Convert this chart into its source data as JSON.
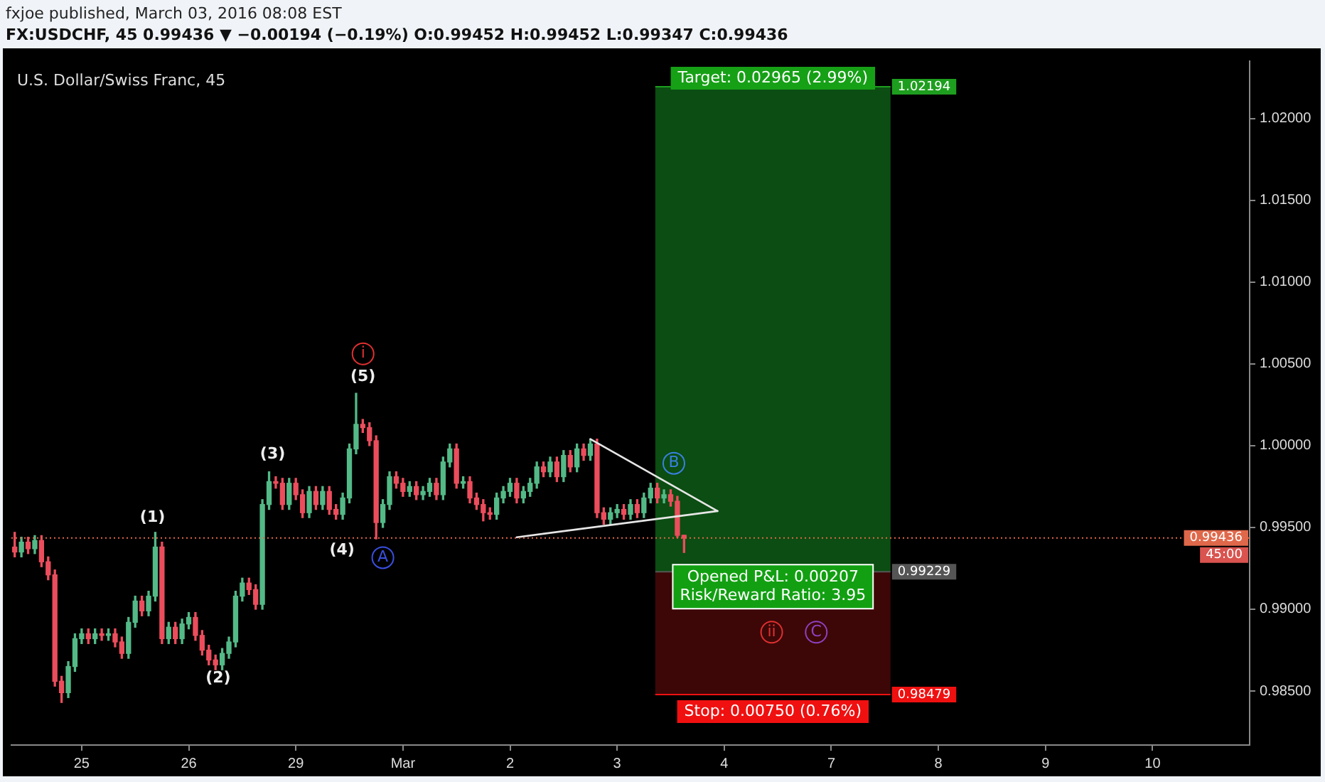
{
  "chart_data": {
    "type": "candlestick",
    "title": "fxjoe published, March 03, 2016 08:08 EST",
    "subtitle": "FX:USDCHF, 45 0.99436 ▼ −0.00194 (−0.19%) O:0.99452 H:0.99452 L:0.99347 C:0.99436",
    "categories": [
      null,
      null,
      null,
      null,
      null,
      null,
      null,
      null,
      null,
      null,
      "25",
      null,
      null,
      null,
      null,
      null,
      null,
      null,
      null,
      null,
      null,
      null,
      null,
      null,
      null,
      null,
      "26",
      null,
      null,
      null,
      null,
      null,
      null,
      null,
      null,
      null,
      null,
      null,
      null,
      null,
      null,
      null,
      "29",
      null,
      null,
      null,
      null,
      null,
      null,
      null,
      null,
      null,
      null,
      null,
      null,
      null,
      null,
      null,
      "Mar",
      null,
      null,
      null,
      null,
      null,
      null,
      null,
      null,
      null,
      null,
      null,
      null,
      null,
      null,
      null,
      "2",
      null,
      null,
      null,
      null,
      null,
      null,
      null,
      null,
      null,
      null,
      null,
      null,
      null,
      null,
      null,
      "3",
      null,
      null,
      null,
      null,
      null,
      null,
      null,
      null,
      null,
      null,
      null,
      null,
      null,
      null,
      null,
      "4",
      null,
      null,
      null,
      null,
      null,
      null,
      null,
      null,
      null,
      null,
      null,
      null,
      null,
      null,
      null,
      "7",
      null,
      null,
      null,
      null,
      null,
      null,
      null,
      null,
      null,
      null,
      null,
      null,
      null,
      null,
      null,
      "8",
      null,
      null,
      null,
      null,
      null,
      null,
      null,
      null,
      null,
      null,
      null,
      null,
      null,
      null,
      null,
      "9",
      null,
      null,
      null,
      null,
      null,
      null,
      null,
      null,
      null,
      null,
      null,
      null,
      null,
      null,
      null,
      "10",
      null,
      null,
      null,
      null,
      null,
      null,
      null,
      null,
      null,
      null,
      null,
      null,
      null,
      null
    ],
    "ohlc": [
      [
        0.9938,
        0.9947,
        0.9932,
        0.9935
      ],
      [
        0.9935,
        0.9944,
        0.9932,
        0.9941
      ],
      [
        0.9941,
        0.9944,
        0.9934,
        0.9937
      ],
      [
        0.9937,
        0.9945,
        0.9934,
        0.9942
      ],
      [
        0.9942,
        0.9945,
        0.9926,
        0.9929
      ],
      [
        0.9929,
        0.9932,
        0.9918,
        0.9921
      ],
      [
        0.9921,
        0.9924,
        0.9853,
        0.9856
      ],
      [
        0.9856,
        0.9859,
        0.9843,
        0.9849
      ],
      [
        0.9849,
        0.9868,
        0.9846,
        0.9865
      ],
      [
        0.9865,
        0.9885,
        0.9862,
        0.9882
      ],
      [
        0.9882,
        0.9888,
        0.9879,
        0.9885
      ],
      [
        0.9885,
        0.9888,
        0.9879,
        0.9882
      ],
      [
        0.9882,
        0.9888,
        0.9879,
        0.9885
      ],
      [
        0.9885,
        0.9888,
        0.9881,
        0.9884
      ],
      [
        0.9884,
        0.9888,
        0.9881,
        0.9885
      ],
      [
        0.9885,
        0.9888,
        0.9877,
        0.988
      ],
      [
        0.988,
        0.9883,
        0.987,
        0.9873
      ],
      [
        0.9873,
        0.9895,
        0.987,
        0.9892
      ],
      [
        0.9892,
        0.9908,
        0.9889,
        0.9905
      ],
      [
        0.9905,
        0.9908,
        0.9896,
        0.9899
      ],
      [
        0.9899,
        0.9911,
        0.9896,
        0.9908
      ],
      [
        0.9908,
        0.9947,
        0.9905,
        0.9938
      ],
      [
        0.9938,
        0.9941,
        0.9879,
        0.9882
      ],
      [
        0.9882,
        0.9892,
        0.9879,
        0.9889
      ],
      [
        0.9889,
        0.9892,
        0.9879,
        0.9882
      ],
      [
        0.9882,
        0.9894,
        0.9879,
        0.9891
      ],
      [
        0.9891,
        0.9898,
        0.9888,
        0.9895
      ],
      [
        0.9895,
        0.9898,
        0.9881,
        0.9884
      ],
      [
        0.9884,
        0.9887,
        0.9872,
        0.9875
      ],
      [
        0.9875,
        0.9878,
        0.9866,
        0.9869
      ],
      [
        0.9869,
        0.9872,
        0.9863,
        0.9866
      ],
      [
        0.9866,
        0.9876,
        0.9863,
        0.9873
      ],
      [
        0.9873,
        0.9883,
        0.987,
        0.988
      ],
      [
        0.988,
        0.9911,
        0.9877,
        0.9908
      ],
      [
        0.9908,
        0.9919,
        0.9905,
        0.9916
      ],
      [
        0.9916,
        0.9919,
        0.9909,
        0.9912
      ],
      [
        0.9912,
        0.9915,
        0.99,
        0.9903
      ],
      [
        0.9903,
        0.9967,
        0.99,
        0.9964
      ],
      [
        0.9964,
        0.9984,
        0.9961,
        0.9978
      ],
      [
        0.9978,
        0.9981,
        0.9974,
        0.9977
      ],
      [
        0.9977,
        0.998,
        0.9961,
        0.9964
      ],
      [
        0.9964,
        0.998,
        0.9961,
        0.9977
      ],
      [
        0.9977,
        0.998,
        0.9967,
        0.997
      ],
      [
        0.997,
        0.9973,
        0.9956,
        0.9959
      ],
      [
        0.9959,
        0.9975,
        0.9956,
        0.9972
      ],
      [
        0.9972,
        0.9975,
        0.9961,
        0.9964
      ],
      [
        0.9964,
        0.9975,
        0.9961,
        0.9972
      ],
      [
        0.9972,
        0.9975,
        0.9958,
        0.9961
      ],
      [
        0.9961,
        0.9964,
        0.9955,
        0.9958
      ],
      [
        0.9958,
        0.9971,
        0.9955,
        0.9968
      ],
      [
        0.9968,
        1.0001,
        0.9965,
        0.9998
      ],
      [
        0.9998,
        1.0032,
        0.9995,
        1.0013
      ],
      [
        1.0013,
        1.0016,
        1.0008,
        1.0011
      ],
      [
        1.0011,
        1.0014,
        1.0,
        1.0003
      ],
      [
        1.0003,
        1.0006,
        0.9943,
        0.9953
      ],
      [
        0.9953,
        0.9967,
        0.995,
        0.9964
      ],
      [
        0.9964,
        0.9984,
        0.9961,
        0.9981
      ],
      [
        0.9981,
        0.9984,
        0.9974,
        0.9977
      ],
      [
        0.9977,
        0.998,
        0.9969,
        0.9972
      ],
      [
        0.9972,
        0.9978,
        0.9969,
        0.9975
      ],
      [
        0.9975,
        0.9978,
        0.9967,
        0.997
      ],
      [
        0.997,
        0.9975,
        0.9967,
        0.9972
      ],
      [
        0.9972,
        0.998,
        0.9969,
        0.9977
      ],
      [
        0.9977,
        0.998,
        0.9967,
        0.997
      ],
      [
        0.997,
        0.9993,
        0.9967,
        0.999
      ],
      [
        0.999,
        1.0001,
        0.9987,
        0.9998
      ],
      [
        0.9998,
        1.0001,
        0.9974,
        0.9977
      ],
      [
        0.9977,
        0.9981,
        0.9974,
        0.9978
      ],
      [
        0.9978,
        0.9981,
        0.9965,
        0.9968
      ],
      [
        0.9968,
        0.9971,
        0.9961,
        0.9964
      ],
      [
        0.9964,
        0.9967,
        0.9954,
        0.9959
      ],
      [
        0.9959,
        0.9962,
        0.9955,
        0.9958
      ],
      [
        0.9958,
        0.9971,
        0.9955,
        0.9968
      ],
      [
        0.9968,
        0.9975,
        0.9965,
        0.9972
      ],
      [
        0.9972,
        0.998,
        0.9969,
        0.9977
      ],
      [
        0.9977,
        0.998,
        0.9965,
        0.9968
      ],
      [
        0.9968,
        0.9975,
        0.9965,
        0.9972
      ],
      [
        0.9972,
        0.998,
        0.9969,
        0.9977
      ],
      [
        0.9977,
        0.999,
        0.9974,
        0.9987
      ],
      [
        0.9987,
        0.999,
        0.9981,
        0.9984
      ],
      [
        0.9984,
        0.9993,
        0.9981,
        0.999
      ],
      [
        0.999,
        0.9993,
        0.9978,
        0.9981
      ],
      [
        0.9981,
        0.9997,
        0.9978,
        0.9994
      ],
      [
        0.9994,
        0.9997,
        0.9984,
        0.9987
      ],
      [
        0.9987,
        1.0001,
        0.9984,
        0.9998
      ],
      [
        0.9998,
        1.0001,
        0.9991,
        0.9994
      ],
      [
        0.9994,
        1.0004,
        0.9991,
        1.0001
      ],
      [
        1.0001,
        1.0004,
        0.9956,
        0.9959
      ],
      [
        0.9959,
        0.9962,
        0.9952,
        0.9955
      ],
      [
        0.9955,
        0.9962,
        0.9952,
        0.9959
      ],
      [
        0.9959,
        0.9964,
        0.9956,
        0.9961
      ],
      [
        0.9961,
        0.9964,
        0.9955,
        0.9958
      ],
      [
        0.9958,
        0.9967,
        0.9955,
        0.9964
      ],
      [
        0.9964,
        0.9967,
        0.9956,
        0.9959
      ],
      [
        0.9959,
        0.9971,
        0.9956,
        0.9968
      ],
      [
        0.9968,
        0.9977,
        0.9965,
        0.9974
      ],
      [
        0.9974,
        0.9977,
        0.9965,
        0.9968
      ],
      [
        0.9968,
        0.9973,
        0.9965,
        0.997
      ],
      [
        0.997,
        0.9973,
        0.9963,
        0.9966
      ],
      [
        0.9966,
        0.9969,
        0.9944,
        0.99452
      ],
      [
        0.99452,
        0.99452,
        0.99347,
        0.99436
      ],
      null,
      null,
      null,
      null,
      null,
      null,
      null,
      null,
      null,
      null,
      null,
      null,
      null,
      null,
      null,
      null,
      null,
      null,
      null,
      null,
      null,
      null,
      null,
      null,
      null,
      null,
      null,
      null,
      null,
      null,
      null,
      null,
      null,
      null,
      null,
      null,
      null,
      null,
      null,
      null,
      null,
      null,
      null,
      null,
      null,
      null,
      null,
      null,
      null,
      null,
      null,
      null,
      null,
      null,
      null,
      null,
      null,
      null,
      null,
      null,
      null,
      null,
      null,
      null,
      null,
      null,
      null,
      null,
      null,
      null,
      null,
      null,
      null,
      null,
      null,
      null,
      null,
      null,
      null,
      null,
      null,
      null,
      null,
      null
    ],
    "series": [
      {
        "type": "line",
        "color": "#e6e6e6",
        "values": [
          null,
          null,
          null,
          null,
          null,
          null,
          null,
          null,
          null,
          null,
          null,
          null,
          null,
          null,
          null,
          null,
          null,
          null,
          null,
          null,
          null,
          null,
          null,
          null,
          null,
          null,
          null,
          null,
          null,
          null,
          null,
          null,
          null,
          null,
          null,
          null,
          null,
          null,
          null,
          null,
          null,
          null,
          null,
          null,
          null,
          null,
          null,
          null,
          null,
          null,
          null,
          null,
          null,
          null,
          null,
          null,
          null,
          null,
          null,
          null,
          null,
          null,
          null,
          null,
          null,
          null,
          null,
          null,
          null,
          null,
          null,
          null,
          null,
          null,
          null,
          null,
          null,
          null,
          null,
          null,
          null,
          null,
          null,
          null,
          null,
          null,
          1.0004,
          null,
          null,
          null,
          null,
          null,
          null,
          null,
          null,
          null,
          null,
          null,
          null,
          null,
          null,
          null,
          null,
          null,
          null,
          0.996,
          null,
          null,
          null,
          null,
          null,
          null,
          null,
          null,
          null,
          null,
          null,
          null,
          null,
          null,
          null,
          null,
          null,
          null,
          null,
          null,
          null,
          null,
          null,
          null,
          null,
          null,
          null,
          null,
          null,
          null,
          null,
          null,
          null,
          null,
          null,
          null,
          null,
          null,
          null,
          null,
          null,
          null,
          null,
          null,
          null,
          null,
          null,
          null,
          null,
          null,
          null,
          null,
          null,
          null,
          null,
          null,
          null,
          null,
          null,
          null,
          null,
          null,
          null,
          null,
          null,
          null,
          null,
          null,
          null,
          null,
          null,
          null,
          null,
          null,
          null,
          null,
          null,
          null,
          null
        ]
      },
      {
        "type": "line",
        "color": "#e6e6e6",
        "values": [
          null,
          null,
          null,
          null,
          null,
          null,
          null,
          null,
          null,
          null,
          null,
          null,
          null,
          null,
          null,
          null,
          null,
          null,
          null,
          null,
          null,
          null,
          null,
          null,
          null,
          null,
          null,
          null,
          null,
          null,
          null,
          null,
          null,
          null,
          null,
          null,
          null,
          null,
          null,
          null,
          null,
          null,
          null,
          null,
          null,
          null,
          null,
          null,
          null,
          null,
          null,
          null,
          null,
          null,
          null,
          null,
          null,
          null,
          null,
          null,
          null,
          null,
          null,
          null,
          null,
          null,
          null,
          null,
          null,
          null,
          null,
          null,
          null,
          null,
          null,
          0.9944,
          null,
          null,
          null,
          null,
          null,
          null,
          null,
          null,
          null,
          null,
          null,
          null,
          null,
          null,
          null,
          null,
          null,
          null,
          null,
          null,
          null,
          null,
          null,
          null,
          null,
          null,
          null,
          null,
          null,
          0.996,
          null,
          null,
          null,
          null,
          null,
          null,
          null,
          null,
          null,
          null,
          null,
          null,
          null,
          null,
          null,
          null,
          null,
          null,
          null,
          null,
          null,
          null,
          null,
          null,
          null,
          null,
          null,
          null,
          null,
          null,
          null,
          null,
          null,
          null,
          null,
          null,
          null,
          null,
          null,
          null,
          null,
          null,
          null,
          null,
          null,
          null,
          null,
          null,
          null,
          null,
          null,
          null,
          null,
          null,
          null,
          null,
          null,
          null,
          null,
          null,
          null,
          null,
          null,
          null,
          null,
          null,
          null,
          null,
          null,
          null,
          null,
          null,
          null,
          null,
          null,
          null,
          null,
          null,
          null
        ]
      }
    ],
    "ylim": [
      0.9817,
      1.0235
    ],
    "yticks": [
      {
        "value": 0.985,
        "label": "0.98500"
      },
      {
        "value": 0.99,
        "label": "0.99000"
      },
      {
        "value": 0.995,
        "label": "0.99500"
      },
      {
        "value": 1,
        "label": "1.00000"
      },
      {
        "value": 1.005,
        "label": "1.00500"
      },
      {
        "value": 1.01,
        "label": "1.01000"
      },
      {
        "value": 1.015,
        "label": "1.01500"
      },
      {
        "value": 1.02,
        "label": "1.02000"
      }
    ],
    "bands": [
      {
        "axis": "y",
        "from": 0.99229,
        "to": 1.02194,
        "label": "Target: 0.02965 (2.99%)",
        "color": "#0b4d12"
      },
      {
        "axis": "y",
        "from": 0.98479,
        "to": 0.99229,
        "label": "Stop: 0.00750 (0.76%)",
        "color": "#3d0707"
      }
    ],
    "ref_lines": [
      {
        "axis": "y",
        "value": 0.99436,
        "label": "0.99436",
        "color": "#e0684a",
        "line_style": "dotted"
      },
      {
        "axis": "y",
        "value": 1.02194,
        "label": "1.02194",
        "color": "#1e9e1e",
        "line_style": "solid"
      },
      {
        "axis": "y",
        "value": 0.99229,
        "label": "0.99229",
        "color": "#555555",
        "line_style": "solid"
      },
      {
        "axis": "y",
        "value": 0.98479,
        "label": "0.98479",
        "color": "#f01010",
        "line_style": "solid"
      }
    ],
    "annotations": [
      "U.S. Dollar/Swiss Franc, 45",
      "45:00",
      "Opened P&L: 0.00207\nRisk/Reward Ratio: 3.95",
      "ii",
      "C",
      "(1)",
      "(2)",
      "(3)",
      "(4)",
      "(5)",
      "i",
      "A",
      "B"
    ],
    "grid": false,
    "legend": false
  }
}
